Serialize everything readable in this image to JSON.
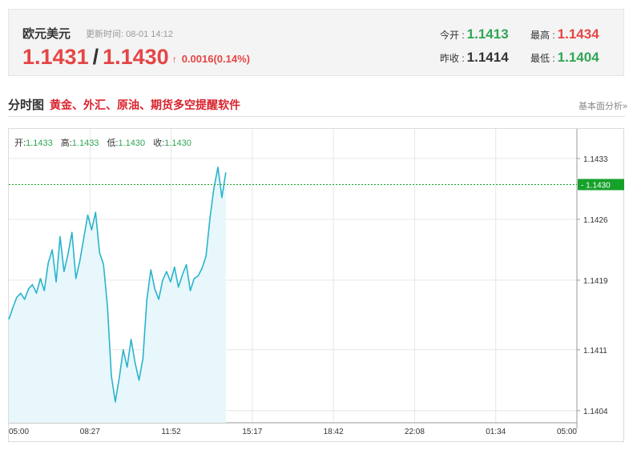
{
  "quote": {
    "pair_name": "欧元美元",
    "update_label": "更新时间: 08-01 14:12",
    "bid": "1.1431",
    "slash": "/",
    "ask": "1.1430",
    "change_arrow": "↑",
    "change": "0.0016(0.14%)",
    "open_label": "今开 :",
    "open_value": "1.1413",
    "high_label": "最高 :",
    "high_value": "1.1434",
    "prev_close_label": "昨收 :",
    "prev_close_value": "1.1414",
    "low_label": "最低 :",
    "low_value": "1.1404"
  },
  "section": {
    "title": "分时图",
    "promo": "黄金、外汇、原油、期货多空提醒软件",
    "basic_link": "基本面分析»"
  },
  "ohlc": {
    "open_label": "开:",
    "open": "1.1433",
    "high_label": "高:",
    "high": "1.1433",
    "low_label": "低:",
    "low": "1.1430",
    "close_label": "收:",
    "close": "1.1430"
  },
  "chart_data": {
    "type": "area",
    "title": "",
    "xlabel": "",
    "ylabel": "",
    "x_ticks": [
      "05:00",
      "08:27",
      "11:52",
      "15:17",
      "18:42",
      "22:08",
      "01:34",
      "05:00"
    ],
    "y_ticks": [
      "1.1433",
      "1.1426",
      "1.1419",
      "1.1411",
      "1.1404"
    ],
    "y_tick_values": [
      1.1433,
      1.1426,
      1.1419,
      1.1411,
      1.1404
    ],
    "ylim": [
      1.14026,
      1.14364
    ],
    "current_price_label": "1.1430",
    "current_price": 1.143,
    "grid": true,
    "series": [
      {
        "x": [
          "05:00",
          "05:10",
          "05:20",
          "05:30",
          "05:40",
          "05:50",
          "06:00",
          "06:10",
          "06:20",
          "06:30",
          "06:40",
          "06:50",
          "07:00",
          "07:10",
          "07:20",
          "07:30",
          "07:40",
          "07:50",
          "08:00",
          "08:10",
          "08:20",
          "08:30",
          "08:40",
          "08:50",
          "09:00",
          "09:10",
          "09:20",
          "09:30",
          "09:40",
          "09:50",
          "10:00",
          "10:10",
          "10:20",
          "10:30",
          "10:40",
          "10:50",
          "11:00",
          "11:10",
          "11:20",
          "11:30",
          "11:40",
          "11:50",
          "12:00",
          "12:10",
          "12:20",
          "12:30",
          "12:40",
          "12:50",
          "13:00",
          "13:10",
          "13:20",
          "13:30",
          "13:40",
          "13:50",
          "14:00",
          "14:10"
        ],
        "values": [
          1.14145,
          1.14158,
          1.1417,
          1.14175,
          1.14168,
          1.1418,
          1.14185,
          1.14175,
          1.14192,
          1.14178,
          1.1421,
          1.14225,
          1.14188,
          1.1424,
          1.142,
          1.1422,
          1.14245,
          1.14192,
          1.14212,
          1.14238,
          1.14265,
          1.14248,
          1.14268,
          1.14222,
          1.14208,
          1.1416,
          1.1408,
          1.1405,
          1.14078,
          1.1411,
          1.1409,
          1.14122,
          1.14095,
          1.14075,
          1.141,
          1.14168,
          1.14202,
          1.1418,
          1.14168,
          1.1419,
          1.142,
          1.14188,
          1.14205,
          1.14182,
          1.14196,
          1.14208,
          1.14178,
          1.14192,
          1.14195,
          1.14204,
          1.14218,
          1.14262,
          1.14296,
          1.1432,
          1.14285,
          1.14314
        ]
      }
    ]
  },
  "colors": {
    "up": "#e64545",
    "down": "#2fa655",
    "line": "#2ab3cc",
    "area": "#e7f7fb",
    "grid": "#e6e6e6",
    "price_tag": "#16a12b"
  }
}
